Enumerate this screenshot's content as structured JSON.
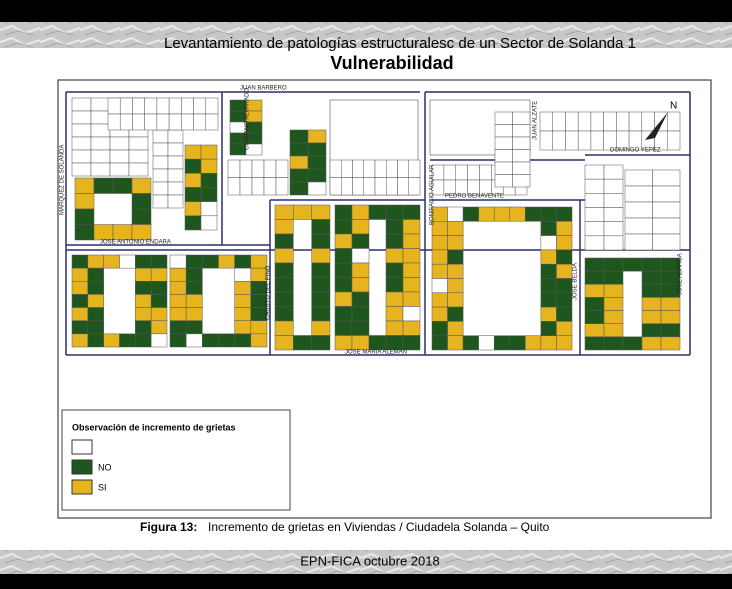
{
  "header": {
    "title": "Levantamiento de patologías estructuralesc de un Sector de Solanda 1",
    "subtitle": "Vulnerabilidad"
  },
  "map": {
    "streets": [
      "JUAN BARBERO",
      "CIPRIANO ALVARADO",
      "JUAN ALZATE",
      "DOMINGO YEPEZ",
      "PEDRO BENAVENTE",
      "MARQUEZ DE SOLANDA",
      "JOSE ANTONIO ENDARA",
      "BONIFACIO AGUILAR",
      "CAUSTO DEL PINO",
      "JOSE MARIA ALEMAN",
      "JOSE BELDA",
      "JOSE ABARCA"
    ],
    "north": "N"
  },
  "legend": {
    "title": "Observación de incremento de grietas",
    "items": [
      "NO",
      "SI"
    ]
  },
  "caption": {
    "label": "Figura 13:",
    "text": "Incremento de grietas en Viviendas / Ciudadela Solanda – Quito"
  },
  "footer": "EPN-FICA octubre 2018"
}
